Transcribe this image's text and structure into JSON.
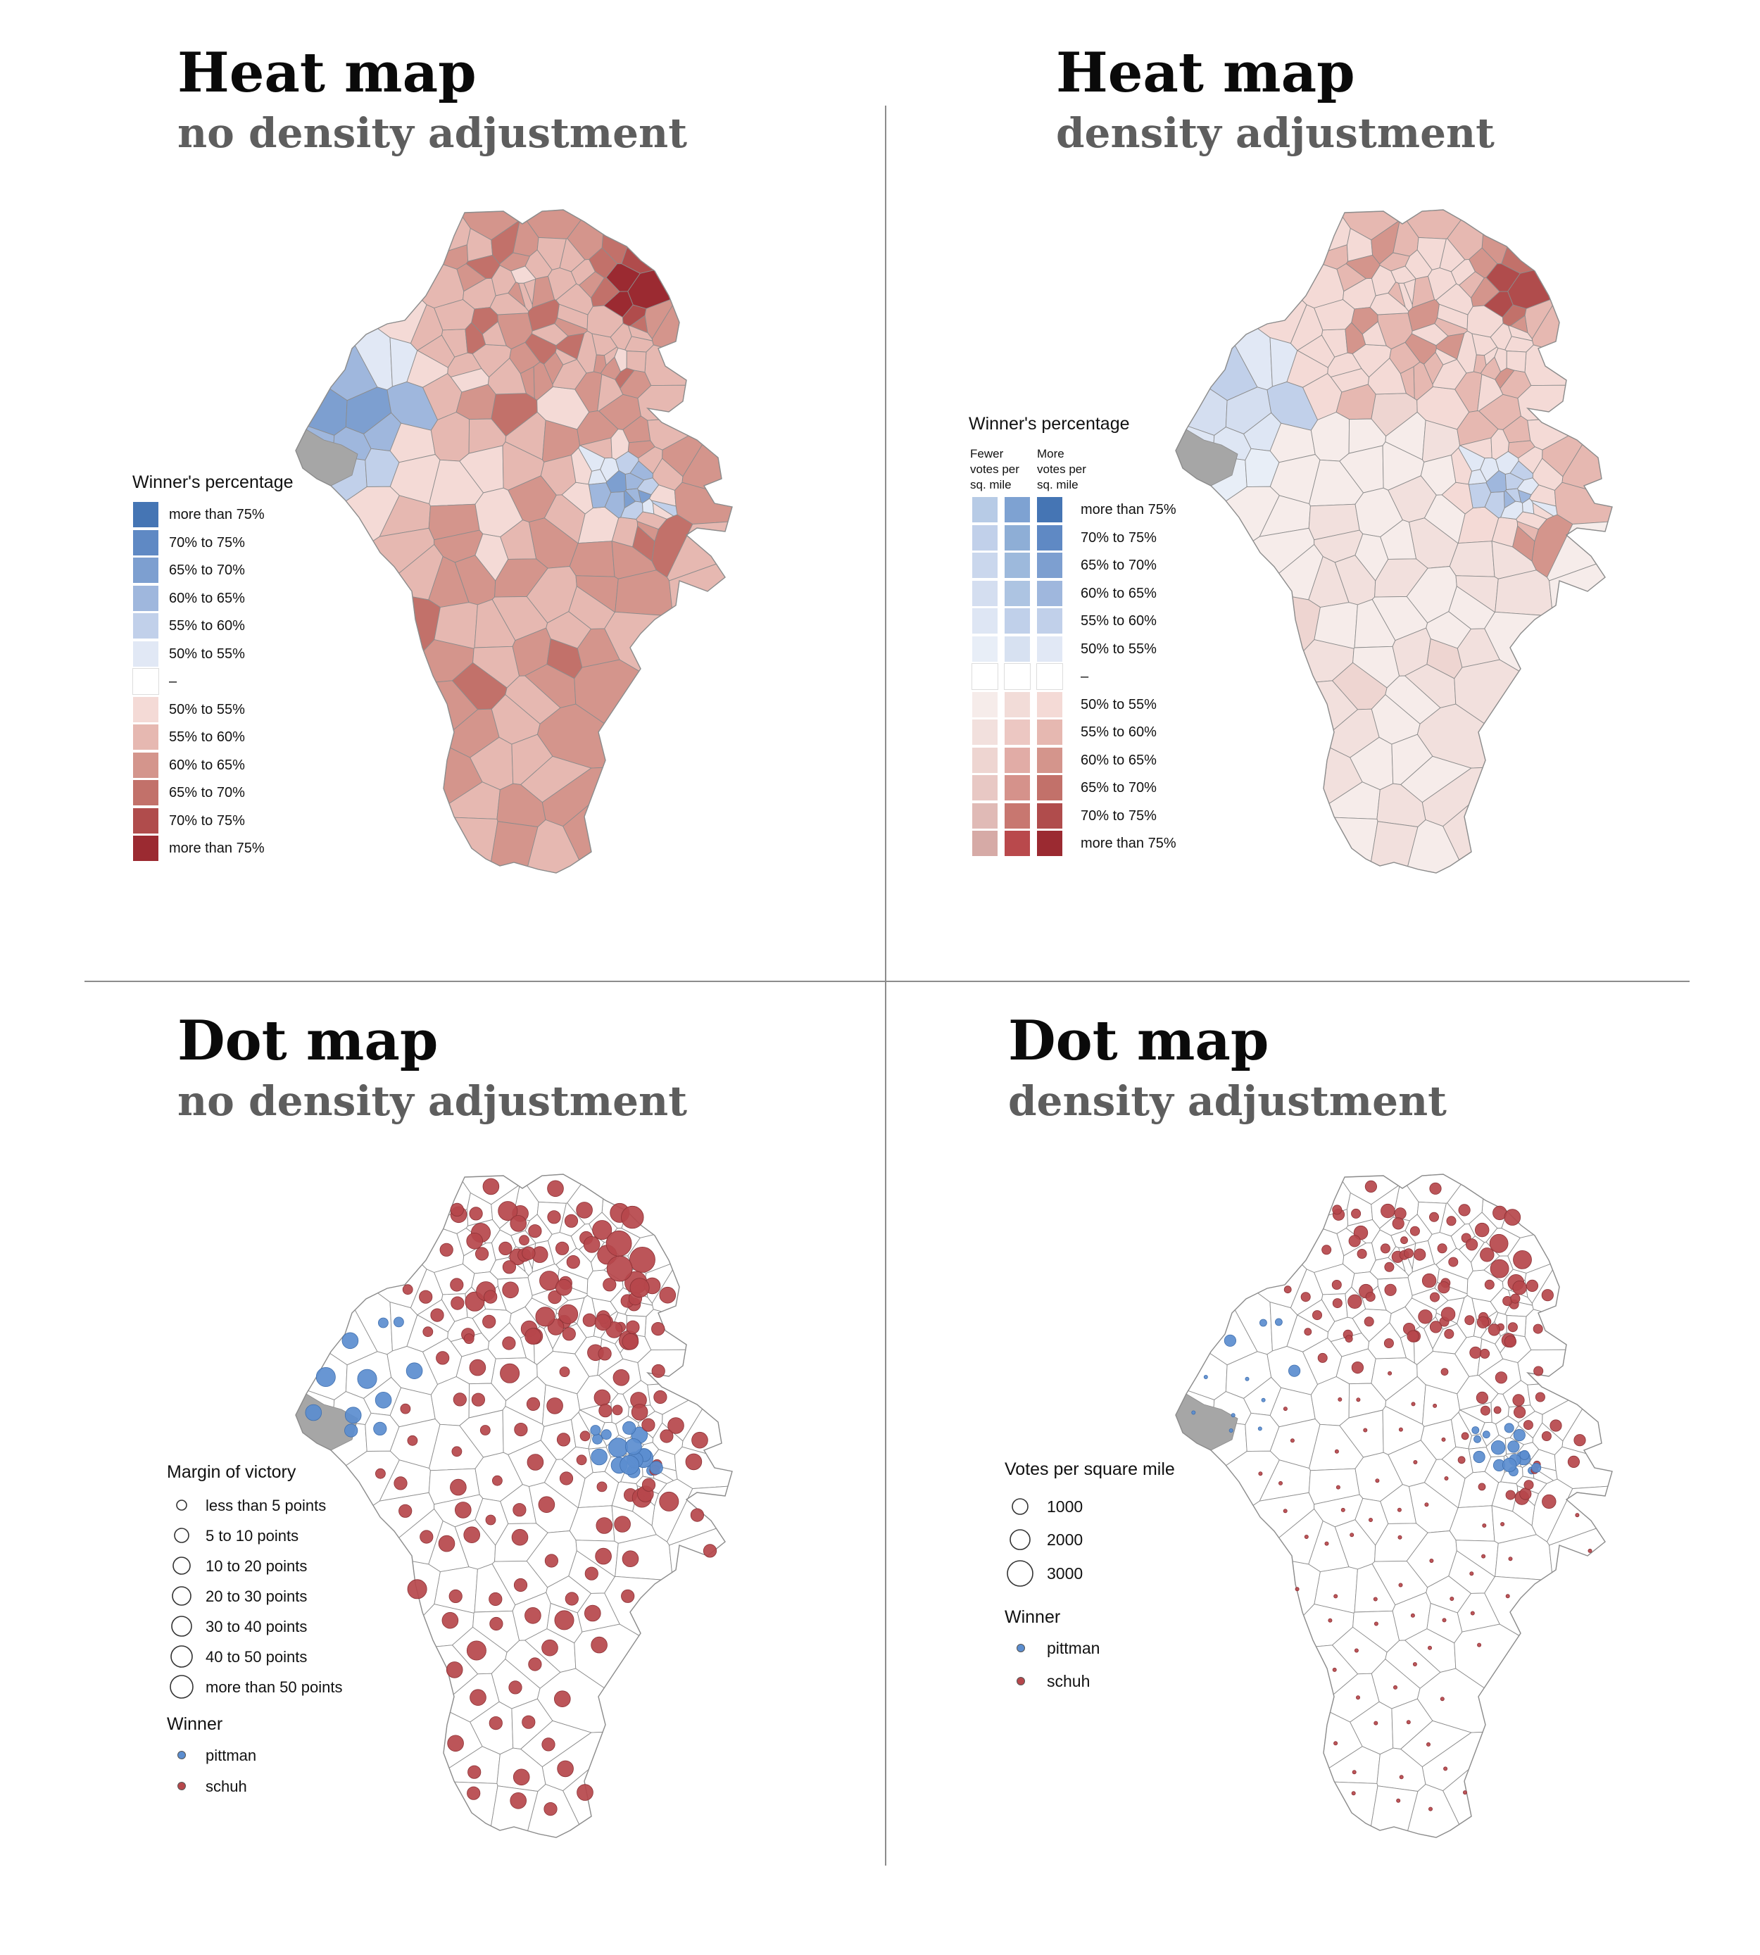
{
  "panels": {
    "heat_no_density": {
      "title": "Heat map",
      "subtitle": "no density adjustment",
      "legend_title": "Winner's percentage",
      "legend_items": [
        {
          "label": "more than 75%",
          "color": "#4575b4"
        },
        {
          "label": "70% to 75%",
          "color": "#5f89c4"
        },
        {
          "label": "65% to 70%",
          "color": "#7d9fd0"
        },
        {
          "label": "60% to 65%",
          "color": "#9fb7dd"
        },
        {
          "label": "55% to 60%",
          "color": "#c1d0ea"
        },
        {
          "label": "50% to 55%",
          "color": "#e1e8f5"
        },
        {
          "label": "–",
          "color": "#ffffff"
        },
        {
          "label": "50% to 55%",
          "color": "#f4dad6"
        },
        {
          "label": "55% to 60%",
          "color": "#e6b8b1"
        },
        {
          "label": "60% to 65%",
          "color": "#d4958c"
        },
        {
          "label": "65% to 70%",
          "color": "#c2716a"
        },
        {
          "label": "70% to 75%",
          "color": "#b04c4c"
        },
        {
          "label": "more than 75%",
          "color": "#9b2a31"
        }
      ]
    },
    "heat_density": {
      "title": "Heat map",
      "subtitle": "density adjustment",
      "legend_title": "Winner's percentage",
      "col_fewer": "Fewer votes per sq. mile",
      "col_more": "More votes per sq. mile",
      "legend_labels": [
        "more than 75%",
        "70% to 75%",
        "65% to 70%",
        "60% to 65%",
        "55% to 60%",
        "50% to 55%",
        "–",
        "50% to 55%",
        "55% to 60%",
        "60% to 65%",
        "65% to 70%",
        "70% to 75%",
        "more than 75%"
      ],
      "legend_cols": [
        [
          "#b7cbe6",
          "#c1d0ea",
          "#cad7ed",
          "#d4def0",
          "#dee6f4",
          "#e8eef7",
          "#ffffff",
          "#f6ecea",
          "#f2e0dd",
          "#eed5d1",
          "#e8c8c4",
          "#e0bab6",
          "#d6aaa6"
        ],
        [
          "#7ea2d2",
          "#8eaed6",
          "#9db9dc",
          "#adc4e2",
          "#c0d0ea",
          "#d7e1f1",
          "#ffffff",
          "#f2dcd8",
          "#ecc7c2",
          "#e1aca6",
          "#d5928b",
          "#c87770",
          "#b9494c"
        ],
        [
          "#4575b4",
          "#5f89c4",
          "#7d9fd0",
          "#9fb7dd",
          "#c1d0ea",
          "#e1e8f5",
          "#ffffff",
          "#f4dad6",
          "#e6b8b1",
          "#d4958c",
          "#c2716a",
          "#b04c4c",
          "#9b2a31"
        ]
      ]
    },
    "dot_no_density": {
      "title": "Dot map",
      "subtitle": "no density adjustment",
      "legend_title": "Margin of victory",
      "sizes": [
        {
          "label": "less than 5 points",
          "r": 7
        },
        {
          "label": "5 to 10 points",
          "r": 10
        },
        {
          "label": "10 to 20 points",
          "r": 12
        },
        {
          "label": "20 to 30 points",
          "r": 13
        },
        {
          "label": "30 to 40 points",
          "r": 14
        },
        {
          "label": "40 to 50 points",
          "r": 15
        },
        {
          "label": "more than 50 points",
          "r": 16
        }
      ],
      "winner_title": "Winner",
      "winners": [
        {
          "label": "pittman",
          "color": "#5b8dcf"
        },
        {
          "label": "schuh",
          "color": "#b6474b"
        }
      ]
    },
    "dot_density": {
      "title": "Dot map",
      "subtitle": "density adjustment",
      "legend_title": "Votes per square mile",
      "sizes": [
        {
          "label": "1000",
          "r": 11
        },
        {
          "label": "2000",
          "r": 14
        },
        {
          "label": "3000",
          "r": 18
        }
      ],
      "winner_title": "Winner",
      "winners": [
        {
          "label": "pittman",
          "color": "#5b8dcf"
        },
        {
          "label": "schuh",
          "color": "#b6474b"
        }
      ]
    }
  },
  "colors": {
    "blue": "#4575b4",
    "red": "#9b2a31",
    "gray_region": "#a6a6a6",
    "border": "#8c8c8c"
  }
}
